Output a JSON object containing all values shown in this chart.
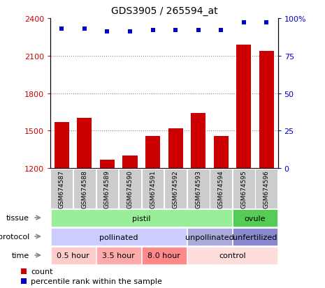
{
  "title": "GDS3905 / 265594_at",
  "samples": [
    "GSM674587",
    "GSM674588",
    "GSM674589",
    "GSM674590",
    "GSM674591",
    "GSM674592",
    "GSM674593",
    "GSM674594",
    "GSM674595",
    "GSM674596"
  ],
  "counts": [
    1570,
    1600,
    1270,
    1300,
    1460,
    1520,
    1640,
    1460,
    2190,
    2140
  ],
  "percentiles": [
    93,
    93,
    91,
    91,
    92,
    92,
    92,
    92,
    97,
    97
  ],
  "ylim_left": [
    1200,
    2400
  ],
  "yticks_left": [
    1200,
    1500,
    1800,
    2100,
    2400
  ],
  "ylim_right": [
    0,
    100
  ],
  "yticks_right": [
    0,
    25,
    50,
    75,
    100
  ],
  "bar_color": "#cc0000",
  "dot_color": "#0000cc",
  "tissue_segments": [
    {
      "label": "pistil",
      "start": 0,
      "end": 8,
      "color": "#99ee99"
    },
    {
      "label": "ovule",
      "start": 8,
      "end": 10,
      "color": "#55cc55"
    }
  ],
  "protocol_segments": [
    {
      "label": "pollinated",
      "start": 0,
      "end": 6,
      "color": "#ccccff"
    },
    {
      "label": "unpollinated",
      "start": 6,
      "end": 8,
      "color": "#aaaadd"
    },
    {
      "label": "unfertilized",
      "start": 8,
      "end": 10,
      "color": "#8888cc"
    }
  ],
  "time_segments": [
    {
      "label": "0.5 hour",
      "start": 0,
      "end": 2,
      "color": "#ffcccc"
    },
    {
      "label": "3.5 hour",
      "start": 2,
      "end": 4,
      "color": "#ffaaaa"
    },
    {
      "label": "8.0 hour",
      "start": 4,
      "end": 6,
      "color": "#ff8888"
    },
    {
      "label": "control",
      "start": 6,
      "end": 10,
      "color": "#ffdddd"
    }
  ],
  "row_labels": [
    "tissue",
    "protocol",
    "time"
  ],
  "legend_count_label": "count",
  "legend_pct_label": "percentile rank within the sample",
  "gridline_color": "#888888",
  "label_box_color": "#cccccc",
  "xtick_box_color": "#cccccc"
}
